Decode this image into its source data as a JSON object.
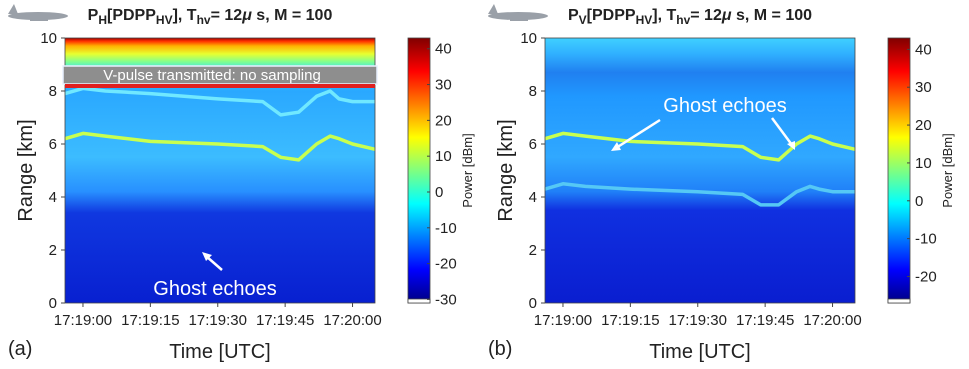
{
  "chart_data": [
    {
      "type": "heatmap",
      "title": [
        {
          "text": "P"
        },
        {
          "text": "H",
          "sub": true
        },
        {
          "text": "[PDPP"
        },
        {
          "text": "HV",
          "sub": true
        },
        {
          "text": "], T"
        },
        {
          "text": "hv",
          "sub": true
        },
        {
          "text": "= 12"
        },
        {
          "text": "μ",
          "italic": true
        },
        {
          "text": " s, M = 100"
        }
      ],
      "panel_label": "(a)",
      "xlabel": "Time [UTC]",
      "ylabel": "Range [km]",
      "colorbar_label": "Power [dBm]",
      "xlim": [
        -4,
        65
      ],
      "xticks": [
        {
          "value": 0,
          "label": "17:19:00"
        },
        {
          "value": 15,
          "label": "17:19:15"
        },
        {
          "value": 30,
          "label": "17:19:30"
        },
        {
          "value": 45,
          "label": "17:19:45"
        },
        {
          "value": 60,
          "label": "17:20:00"
        }
      ],
      "ylim": [
        10,
        0
      ],
      "yticks": [
        0,
        2,
        4,
        6,
        8,
        10
      ],
      "clim": [
        -31,
        43
      ],
      "cticks": [
        40,
        30,
        20,
        10,
        0,
        -10,
        -20,
        -30
      ],
      "annotations": [
        "V-pulse transmitted: no sampling",
        "Ghost echoes"
      ],
      "x": [
        -4,
        0,
        5,
        15,
        30,
        40,
        44,
        48,
        52,
        55,
        57,
        60,
        65
      ],
      "series": [
        {
          "color": "#c8ff50",
          "values": [
            6.2,
            6.4,
            6.3,
            6.1,
            6.0,
            5.9,
            5.5,
            5.4,
            6.0,
            6.3,
            6.2,
            6.0,
            5.8
          ]
        },
        {
          "color": "#70e8ff",
          "values": [
            7.9,
            8.1,
            8.0,
            7.9,
            7.7,
            7.6,
            7.1,
            7.2,
            7.8,
            8.0,
            7.7,
            7.6,
            7.6
          ]
        }
      ]
    },
    {
      "type": "heatmap",
      "title": [
        {
          "text": "P"
        },
        {
          "text": "V",
          "sub": true
        },
        {
          "text": "[PDPP"
        },
        {
          "text": "HV",
          "sub": true
        },
        {
          "text": "], T"
        },
        {
          "text": "hv",
          "sub": true
        },
        {
          "text": "= 12"
        },
        {
          "text": "μ",
          "italic": true
        },
        {
          "text": " s, M = 100"
        }
      ],
      "panel_label": "(b)",
      "xlabel": "Time [UTC]",
      "ylabel": "Range [km]",
      "colorbar_label": "Power [dBm]",
      "xlim": [
        -4,
        65
      ],
      "xticks": [
        {
          "value": 0,
          "label": "17:19:00"
        },
        {
          "value": 15,
          "label": "17:19:15"
        },
        {
          "value": 30,
          "label": "17:19:30"
        },
        {
          "value": 45,
          "label": "17:19:45"
        },
        {
          "value": 60,
          "label": "17:20:00"
        }
      ],
      "ylim": [
        10,
        0
      ],
      "yticks": [
        0,
        2,
        4,
        6,
        8,
        10
      ],
      "clim": [
        -27,
        43
      ],
      "cticks": [
        40,
        30,
        20,
        10,
        0,
        -10,
        -20
      ],
      "annotations": [
        "Ghost echoes"
      ],
      "x": [
        -4,
        0,
        5,
        15,
        30,
        40,
        44,
        48,
        52,
        55,
        57,
        60,
        65
      ],
      "series": [
        {
          "color": "#c8ff50",
          "values": [
            6.2,
            6.4,
            6.3,
            6.1,
            6.0,
            5.9,
            5.5,
            5.4,
            6.0,
            6.3,
            6.2,
            6.0,
            5.8
          ]
        },
        {
          "color": "#55c8f5",
          "values": [
            4.3,
            4.5,
            4.4,
            4.3,
            4.2,
            4.1,
            3.7,
            3.7,
            4.2,
            4.4,
            4.3,
            4.2,
            4.2
          ]
        }
      ]
    }
  ]
}
